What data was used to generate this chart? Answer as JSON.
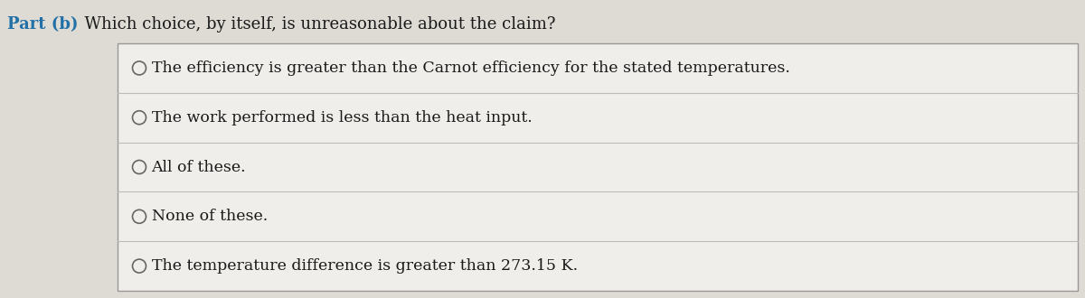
{
  "title_part": "Part (b)",
  "title_question": "  Which choice, by itself, is unreasonable about the claim?",
  "title_color": "#2171a8",
  "title_question_color": "#1a1a1a",
  "background_outer": "#c8c4bc",
  "background_top": "#dedad4",
  "background_box": "#f0eeea",
  "box_border_color": "#999999",
  "row_divider_color": "#bbbbbb",
  "options": [
    "The efficiency is greater than the Carnot efficiency for the stated temperatures.",
    "The work performed is less than the heat input.",
    "All of these.",
    "None of these.",
    "The temperature difference is greater than 273.15 K."
  ],
  "option_text_color": "#1a1a1a",
  "font_size_title": 13.0,
  "font_size_options": 12.5,
  "radio_color": "#666666",
  "figsize": [
    12.0,
    3.3
  ],
  "dpi": 100
}
